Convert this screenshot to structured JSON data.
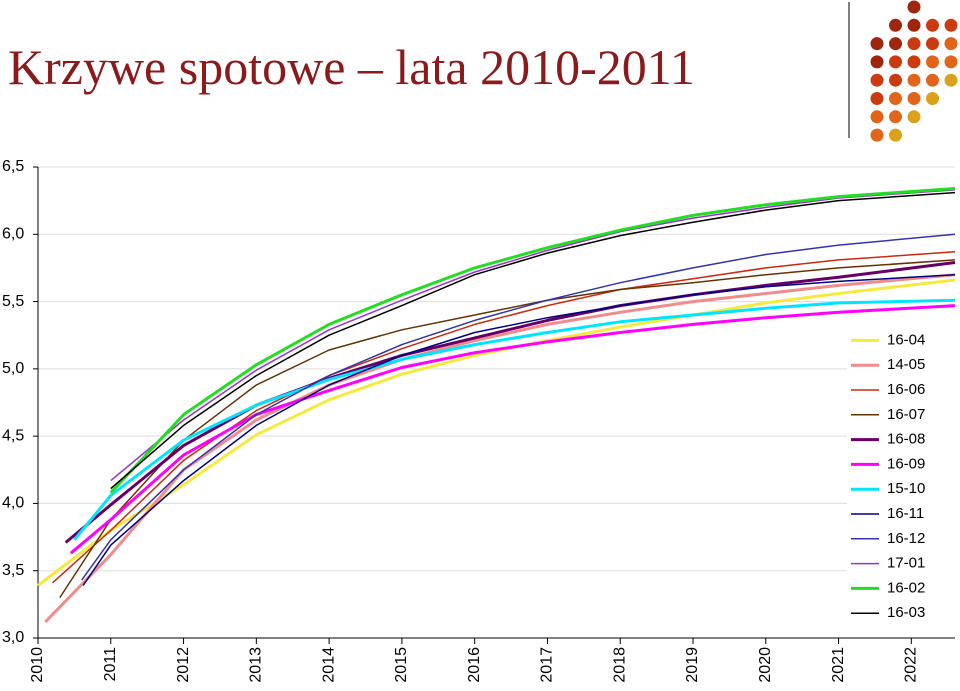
{
  "chart_data": {
    "type": "line",
    "title": "Krzywe spotowe – lata 2010-2011",
    "xlim": [
      2010,
      2022.6
    ],
    "xticks": [
      2010,
      2011,
      2012,
      2013,
      2014,
      2015,
      2016,
      2017,
      2018,
      2019,
      2020,
      2021,
      2022
    ],
    "ylim": [
      3,
      6.5
    ],
    "yticks": [
      {
        "value": 3,
        "label": "3,0"
      },
      {
        "value": 3.5,
        "label": "3,5"
      },
      {
        "value": 4,
        "label": "4,0"
      },
      {
        "value": 4.5,
        "label": "4,5"
      },
      {
        "value": 5,
        "label": "5,0"
      },
      {
        "value": 5.5,
        "label": "5,5"
      },
      {
        "value": 6,
        "label": "6,0"
      },
      {
        "value": 6.5,
        "label": "6,5"
      }
    ],
    "grid": true,
    "legend": "lower right",
    "series": [
      {
        "name": "16-04",
        "color": "#f5ea3c",
        "width": 3,
        "x": [
          2010,
          2011,
          2012,
          2013,
          2014,
          2015,
          2016,
          2017,
          2018,
          2019,
          2020,
          2021,
          2022.6
        ],
        "values": [
          3.39,
          3.8,
          4.14,
          4.51,
          4.77,
          4.96,
          5.1,
          5.21,
          5.31,
          5.4,
          5.49,
          5.56,
          5.66
        ]
      },
      {
        "name": "14-05",
        "color": "#f08c8c",
        "width": 3,
        "x": [
          2010.1,
          2011,
          2012,
          2013,
          2014,
          2015,
          2016,
          2017,
          2018,
          2019,
          2020,
          2021,
          2022.6
        ],
        "values": [
          3.12,
          3.62,
          4.25,
          4.62,
          4.88,
          5.07,
          5.21,
          5.33,
          5.42,
          5.5,
          5.56,
          5.62,
          5.7
        ]
      },
      {
        "name": "16-06",
        "color": "#cc2a10",
        "width": 1.5,
        "x": [
          2010.2,
          2011,
          2012,
          2013,
          2014,
          2015,
          2016,
          2017,
          2018,
          2019,
          2020,
          2021,
          2022.6
        ],
        "values": [
          3.41,
          3.8,
          4.32,
          4.69,
          4.95,
          5.15,
          5.33,
          5.47,
          5.59,
          5.67,
          5.75,
          5.81,
          5.87
        ]
      },
      {
        "name": "16-07",
        "color": "#663300",
        "width": 1.5,
        "x": [
          2010.3,
          2011,
          2012,
          2013,
          2014,
          2015,
          2016,
          2017,
          2018,
          2019,
          2020,
          2021,
          2022.6
        ],
        "values": [
          3.3,
          3.88,
          4.47,
          4.88,
          5.14,
          5.29,
          5.4,
          5.51,
          5.59,
          5.64,
          5.7,
          5.75,
          5.81
        ]
      },
      {
        "name": "16-08",
        "color": "#660066",
        "width": 3,
        "x": [
          2010.38,
          2011,
          2012,
          2013,
          2014,
          2015,
          2016,
          2017,
          2018,
          2019,
          2020,
          2021,
          2022.6
        ],
        "values": [
          3.71,
          3.99,
          4.43,
          4.73,
          4.93,
          5.1,
          5.23,
          5.36,
          5.47,
          5.55,
          5.62,
          5.68,
          5.79
        ]
      },
      {
        "name": "16-09",
        "color": "#ff00ff",
        "width": 3,
        "x": [
          2010.45,
          2011,
          2012,
          2013,
          2014,
          2015,
          2016,
          2017,
          2018,
          2019,
          2020,
          2021,
          2022.6
        ],
        "values": [
          3.63,
          3.88,
          4.36,
          4.66,
          4.84,
          5.01,
          5.12,
          5.2,
          5.27,
          5.33,
          5.38,
          5.42,
          5.47
        ]
      },
      {
        "name": "15-10",
        "color": "#00e5ff",
        "width": 3,
        "x": [
          2010.5,
          2011,
          2012,
          2013,
          2014,
          2015,
          2016,
          2017,
          2018,
          2019,
          2020,
          2021,
          2022.6
        ],
        "values": [
          3.73,
          4.06,
          4.47,
          4.73,
          4.92,
          5.07,
          5.18,
          5.27,
          5.35,
          5.4,
          5.45,
          5.49,
          5.51
        ]
      },
      {
        "name": "16-11",
        "color": "#000080",
        "width": 1.5,
        "x": [
          2010.62,
          2011,
          2012,
          2013,
          2014,
          2015,
          2016,
          2017,
          2018,
          2019,
          2020,
          2021,
          2022.6
        ],
        "values": [
          3.39,
          3.69,
          4.17,
          4.58,
          4.88,
          5.1,
          5.27,
          5.38,
          5.47,
          5.55,
          5.61,
          5.65,
          5.7
        ]
      },
      {
        "name": "16-12",
        "color": "#3333aa",
        "width": 1.5,
        "x": [
          2010.6,
          2011,
          2012,
          2013,
          2014,
          2015,
          2016,
          2017,
          2018,
          2019,
          2020,
          2021,
          2022.6
        ],
        "values": [
          3.43,
          3.73,
          4.25,
          4.66,
          4.95,
          5.18,
          5.36,
          5.51,
          5.64,
          5.75,
          5.85,
          5.92,
          6.0
        ]
      },
      {
        "name": "17-01",
        "color": "#9933cc",
        "width": 1.5,
        "x": [
          2011,
          2012,
          2013,
          2014,
          2015,
          2016,
          2017,
          2018,
          2019,
          2020,
          2021,
          2022.6
        ],
        "values": [
          4.17,
          4.62,
          4.99,
          5.29,
          5.51,
          5.72,
          5.88,
          6.02,
          6.12,
          6.2,
          6.27,
          6.33
        ]
      },
      {
        "name": "16-02",
        "color": "#22dd22",
        "width": 3,
        "x": [
          2011,
          2012,
          2013,
          2014,
          2015,
          2016,
          2017,
          2018,
          2019,
          2020,
          2021,
          2022.6
        ],
        "values": [
          4.08,
          4.66,
          5.03,
          5.33,
          5.55,
          5.75,
          5.9,
          6.03,
          6.14,
          6.22,
          6.28,
          6.34
        ]
      },
      {
        "name": "16-03",
        "color": "#000000",
        "width": 1.5,
        "x": [
          2011,
          2012,
          2013,
          2014,
          2015,
          2016,
          2017,
          2018,
          2019,
          2020,
          2021,
          2022.6
        ],
        "values": [
          4.11,
          4.58,
          4.95,
          5.25,
          5.47,
          5.7,
          5.86,
          5.99,
          6.09,
          6.18,
          6.25,
          6.31
        ]
      }
    ]
  }
}
